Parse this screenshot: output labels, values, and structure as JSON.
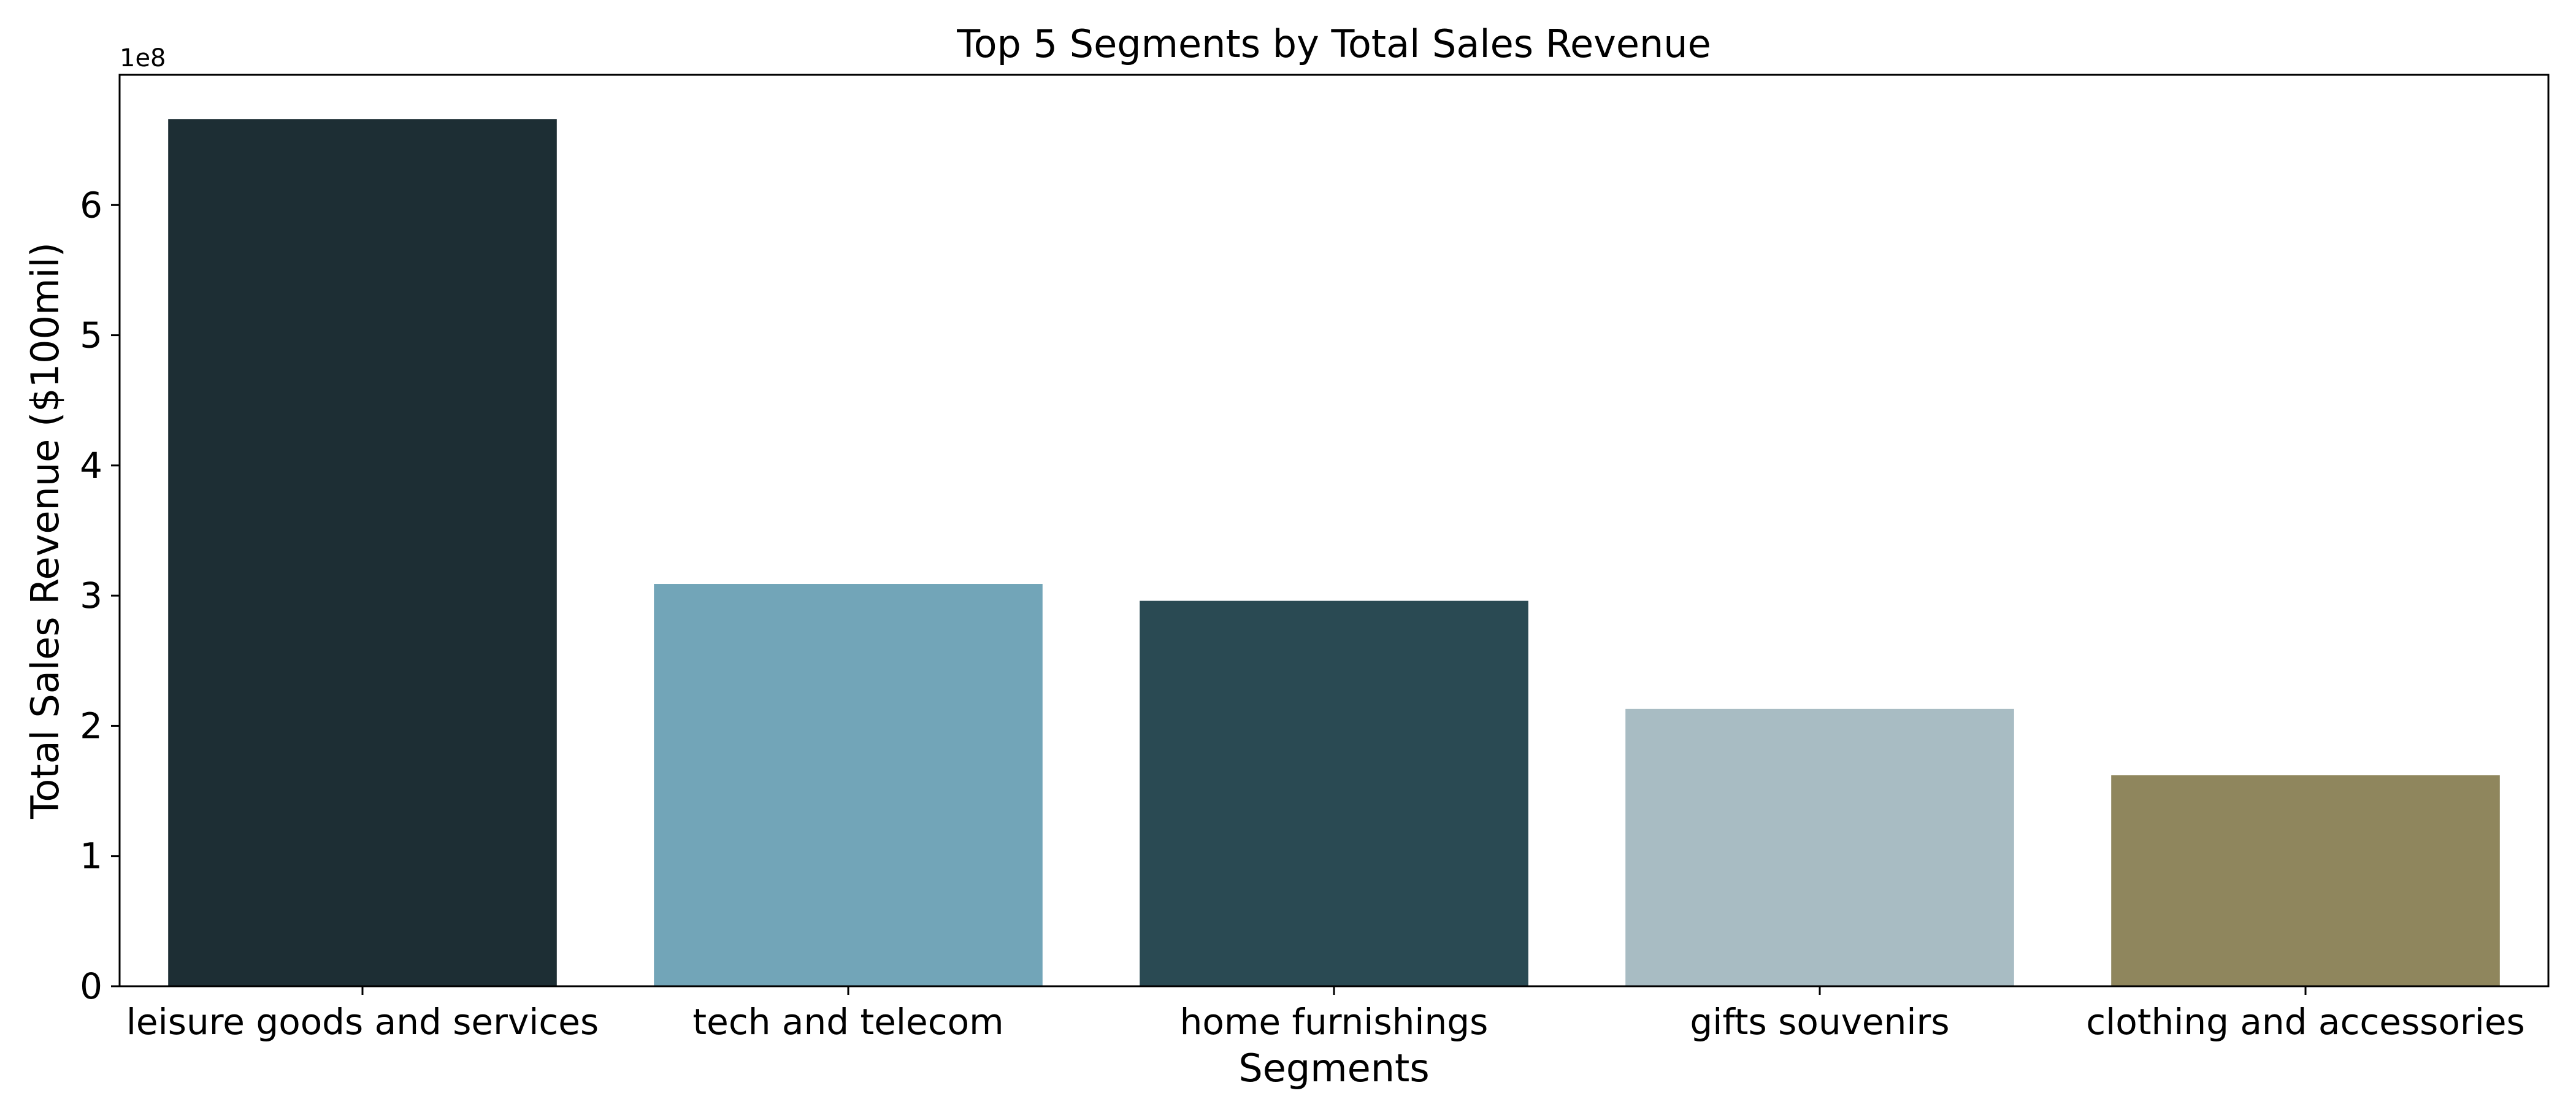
{
  "chart_data": {
    "type": "bar",
    "title": "Top 5 Segments by Total Sales Revenue",
    "xlabel": "Segments",
    "ylabel": "Total Sales Revenue ($100mil)",
    "scale_label": "1e8",
    "categories": [
      "leisure goods and services",
      "tech and telecom",
      "home furnishings",
      "gifts souvenirs",
      "clothing and accessories"
    ],
    "values": [
      666000000,
      309000000,
      296000000,
      213000000,
      162000000
    ],
    "colors": [
      "#1d2e34",
      "#72a5b8",
      "#2a4a53",
      "#a8bcc3",
      "#8f865d"
    ],
    "y_ticks": [
      0,
      1,
      2,
      3,
      4,
      5,
      6
    ],
    "tick_multiplier": 100000000,
    "ylim": [
      0,
      700000000
    ],
    "grid": false,
    "legend": "none"
  }
}
